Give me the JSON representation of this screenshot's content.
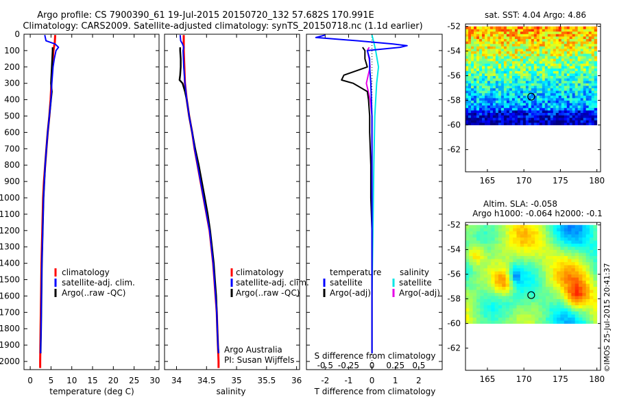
{
  "header": {
    "line1": "Argo profile: CS 7900390_61 19-Jul-2015 20150720_132 57.682S 170.991E",
    "line2": "Climatology: CARS2009. Satellite-adjusted climatology: synTS_20150718.nc (1.1d earlier)"
  },
  "colors": {
    "climatology": "#ff0000",
    "satellite": "#0000ff",
    "argo": "#000000",
    "salinity_satellite": "#00e5e5",
    "salinity_argo": "#e600e6"
  },
  "chart_data": [
    {
      "type": "line",
      "panel": "temperature",
      "xlabel": "temperature (deg C)",
      "ylabel": "",
      "xlim": [
        -1.5,
        31
      ],
      "ylim": [
        2050,
        0
      ],
      "xticks": [
        "0",
        "5",
        "10",
        "15",
        "20",
        "25",
        "30"
      ],
      "yticks": [
        "0",
        "100",
        "200",
        "300",
        "400",
        "500",
        "600",
        "700",
        "800",
        "900",
        "1000",
        "1100",
        "1200",
        "1300",
        "1400",
        "1500",
        "1600",
        "1700",
        "1800",
        "1900",
        "2000"
      ],
      "legend": [
        "climatology",
        "satellite-adj. clim.",
        "Argo(..raw -QC)"
      ],
      "series": [
        {
          "name": "climatology",
          "color": "#ff0000",
          "depth": [
            5,
            50,
            100,
            200,
            300,
            400,
            500,
            600,
            700,
            800,
            900,
            1000,
            1200,
            1400,
            1600,
            1800,
            2000,
            2040
          ],
          "values": [
            6.0,
            5.9,
            5.6,
            5.3,
            5.1,
            4.9,
            4.6,
            4.2,
            3.9,
            3.6,
            3.3,
            3.1,
            2.9,
            2.7,
            2.6,
            2.5,
            2.4,
            2.4
          ]
        },
        {
          "name": "satellite-adj. clim.",
          "color": "#0000ff",
          "depth": [
            5,
            40,
            60,
            80,
            100,
            150,
            200,
            300,
            400,
            500,
            600,
            700,
            800,
            900,
            1000,
            1200,
            1400,
            1600,
            1800,
            1950
          ],
          "values": [
            3.5,
            3.8,
            6.0,
            6.8,
            6.2,
            5.8,
            5.5,
            5.2,
            5.0,
            4.6,
            4.2,
            3.9,
            3.6,
            3.4,
            3.2,
            3.0,
            2.8,
            2.7,
            2.6,
            2.5
          ]
        },
        {
          "name": "Argo(..raw -QC)",
          "color": "#000000",
          "depth": [
            80,
            100,
            150,
            200,
            250,
            300,
            350,
            400,
            500,
            600,
            700,
            800,
            900,
            1000,
            1200,
            1400,
            1600,
            1800,
            1950
          ],
          "values": [
            5.4,
            5.4,
            5.3,
            5.2,
            5.1,
            5.0,
            5.2,
            5.0,
            4.6,
            4.2,
            3.9,
            3.6,
            3.4,
            3.2,
            3.0,
            2.8,
            2.7,
            2.6,
            2.5
          ]
        }
      ]
    },
    {
      "type": "line",
      "panel": "salinity",
      "xlabel": "salinity",
      "ylabel": "",
      "xlim": [
        33.8,
        36.05
      ],
      "ylim": [
        2050,
        0
      ],
      "xticks": [
        "34",
        "34.5",
        "35",
        "35.5",
        "36"
      ],
      "legend": [
        "climatology",
        "satellite-adj. clim.",
        "Argo(..raw -QC)"
      ],
      "annotations": [
        "Argo Australia",
        "PI: Susan Wijffels"
      ],
      "series": [
        {
          "name": "climatology",
          "color": "#ff0000",
          "depth": [
            5,
            50,
            100,
            200,
            300,
            400,
            500,
            600,
            700,
            800,
            900,
            1000,
            1100,
            1200,
            1300,
            1400,
            1500,
            1600,
            1700,
            1800,
            1900,
            2000,
            2040
          ],
          "values": [
            34.12,
            34.12,
            34.12,
            34.13,
            34.14,
            34.17,
            34.21,
            34.26,
            34.3,
            34.35,
            34.4,
            34.45,
            34.5,
            34.55,
            34.58,
            34.61,
            34.63,
            34.65,
            34.67,
            34.68,
            34.69,
            34.7,
            34.7
          ]
        },
        {
          "name": "satellite-adj. clim.",
          "color": "#0000ff",
          "depth": [
            5,
            40,
            60,
            80,
            100,
            200,
            300,
            400,
            500,
            600,
            700,
            800,
            900,
            1000,
            1100,
            1200,
            1300,
            1400,
            1500,
            1600,
            1700,
            1800,
            1900,
            1950
          ],
          "values": [
            34.06,
            34.07,
            34.1,
            34.12,
            34.11,
            34.12,
            34.14,
            34.17,
            34.21,
            34.26,
            34.3,
            34.35,
            34.4,
            34.45,
            34.5,
            34.55,
            34.58,
            34.61,
            34.63,
            34.65,
            34.67,
            34.68,
            34.69,
            34.7
          ]
        },
        {
          "name": "Argo(..raw -QC)",
          "color": "#000000",
          "depth": [
            80,
            100,
            150,
            200,
            250,
            280,
            300,
            350,
            400,
            500,
            600,
            700,
            800,
            900,
            1000,
            1100,
            1200,
            1300,
            1400,
            1500,
            1600,
            1700,
            1800,
            1900,
            1950
          ],
          "values": [
            34.06,
            34.06,
            34.07,
            34.07,
            34.06,
            34.05,
            34.1,
            34.14,
            34.17,
            34.21,
            34.26,
            34.31,
            34.37,
            34.42,
            34.47,
            34.52,
            34.56,
            34.59,
            34.62,
            34.64,
            34.66,
            34.67,
            34.68,
            34.69,
            34.7
          ]
        }
      ]
    },
    {
      "type": "line",
      "panel": "differences",
      "xlabel": "T difference from climatology",
      "xlabel_top": "S difference from climatology",
      "xlim": [
        -2.8,
        3.0
      ],
      "ylim": [
        2050,
        0
      ],
      "xticks": [
        "-2",
        "-1",
        "0",
        "1",
        "2"
      ],
      "xticks_s": [
        "-0.5",
        "-0.25",
        "0",
        "0.25",
        "0.5"
      ],
      "legend_temperature": {
        "title": "temperature",
        "items": [
          "satellite",
          "Argo(-adj)"
        ]
      },
      "legend_salinity": {
        "title": "salinity",
        "items": [
          "satellite",
          "Argo(-adj)"
        ]
      },
      "series": [
        {
          "name": "T satellite",
          "color": "#0000ff",
          "depth": [
            5,
            20,
            40,
            60,
            70,
            80,
            100,
            150,
            200,
            300,
            500,
            800,
            1200,
            1600,
            1950
          ],
          "values": [
            -2.0,
            -2.4,
            -0.6,
            0.9,
            1.5,
            1.2,
            -0.2,
            -0.1,
            -0.1,
            -0.05,
            0.0,
            0.0,
            0.0,
            0.0,
            0.0
          ]
        },
        {
          "name": "T Argo(-adj)",
          "color": "#000000",
          "depth": [
            80,
            100,
            150,
            200,
            250,
            280,
            300,
            350,
            400,
            500,
            600,
            800,
            1000,
            1200,
            1500,
            1800,
            1950
          ],
          "values": [
            -0.4,
            -0.3,
            -0.3,
            -0.2,
            -1.2,
            -1.3,
            -0.8,
            -0.2,
            -0.15,
            -0.1,
            -0.1,
            -0.05,
            -0.05,
            0.0,
            0.0,
            0.0,
            0.0
          ]
        },
        {
          "name": "S satellite",
          "color": "#00e5e5",
          "depth": [
            5,
            50,
            100,
            200,
            300,
            500,
            800,
            1200,
            1600,
            1950
          ],
          "values": [
            0.0,
            0.02,
            0.04,
            0.07,
            0.05,
            0.03,
            0.02,
            0.01,
            0.0,
            0.0
          ]
        },
        {
          "name": "S Argo(-adj)",
          "color": "#e600e6",
          "depth": [
            80,
            100,
            150,
            200,
            250,
            300,
            400,
            500,
            800,
            1200,
            1600,
            1950
          ],
          "values": [
            -0.03,
            -0.05,
            -0.03,
            -0.02,
            -0.04,
            -0.06,
            -0.02,
            0.0,
            0.0,
            0.0,
            0.0,
            0.0
          ]
        }
      ]
    },
    {
      "type": "heatmap",
      "panel": "sst_map",
      "title": "sat. SST: 4.04  Argo: 4.86",
      "xlim": [
        162,
        180.5
      ],
      "ylim": [
        -63.8,
        -51.8
      ],
      "xticks": [
        "165",
        "170",
        "175",
        "180"
      ],
      "yticks": [
        "-52",
        "-54",
        "-56",
        "-58",
        "-60",
        "-62"
      ],
      "data_extent": {
        "lon": [
          162,
          180
        ],
        "lat": [
          -60,
          -52
        ]
      },
      "marker": {
        "lon": 171.0,
        "lat": -57.7
      }
    },
    {
      "type": "heatmap",
      "panel": "sla_map",
      "title": "Altim. SLA: -0.058",
      "subtitle": "Argo h1000: -0.064  h2000: -0.1",
      "xlim": [
        162,
        180.5
      ],
      "ylim": [
        -63.8,
        -51.8
      ],
      "xticks": [
        "165",
        "170",
        "175",
        "180"
      ],
      "yticks": [
        "-52",
        "-54",
        "-56",
        "-58",
        "-60",
        "-62"
      ],
      "data_extent": {
        "lon": [
          162,
          180
        ],
        "lat": [
          -60,
          -52
        ]
      },
      "marker": {
        "lon": 171.0,
        "lat": -57.7
      }
    }
  ],
  "footer": {
    "credit": "©IMOS 25-Jul-2015 20:41:37"
  }
}
